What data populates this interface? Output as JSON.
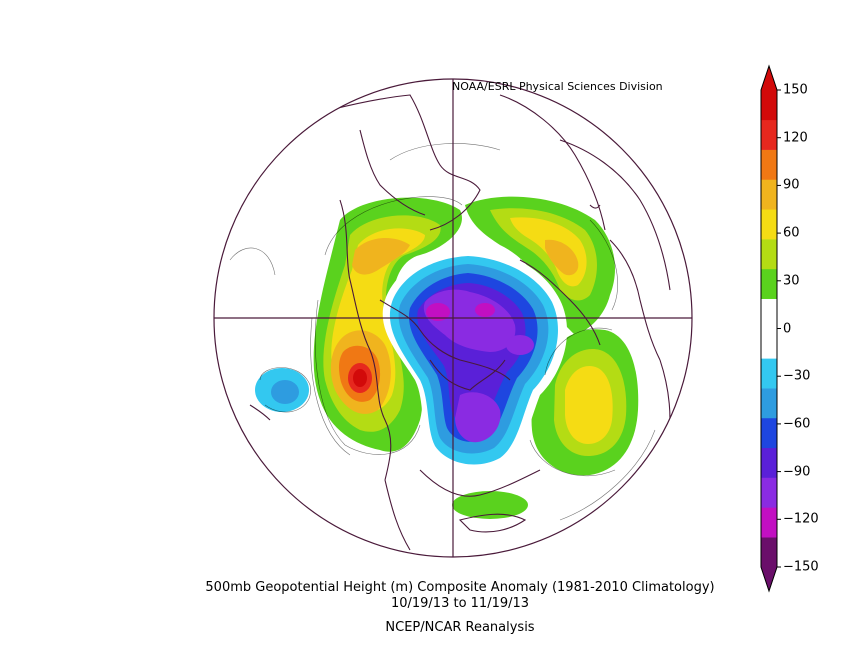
{
  "credit": "NOAA/ESRL Physical Sciences Division",
  "caption": {
    "title": "500mb Geopotential Height (m) Composite Anomaly (1981-2010 Climatology)",
    "dates": "10/19/13  to 11/19/13",
    "source": "NCEP/NCAR Reanalysis"
  },
  "colorbar": {
    "min": -150,
    "max": 150,
    "ticks": [
      "150",
      "120",
      "90",
      "60",
      "30",
      "0",
      "−30",
      "−60",
      "−90",
      "−120",
      "−150"
    ],
    "colors": [
      "#6a0f6a",
      "#c20fc2",
      "#8a2be2",
      "#5a20d8",
      "#1e46e0",
      "#2e9ce0",
      "#33c8f0",
      "#ffffff",
      "#ffffff",
      "#5ad21e",
      "#b4dc14",
      "#f5dc14",
      "#f0b41e",
      "#f07814",
      "#e6281e",
      "#d20a0a"
    ]
  },
  "map": {
    "projection": "north-polar-stereographic",
    "ocean_color": "#ffffff",
    "outline_color": "#4a1a3a"
  }
}
